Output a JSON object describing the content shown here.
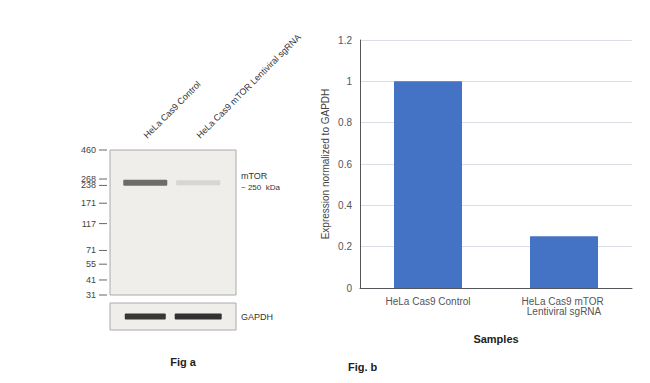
{
  "chart_data": [
    {
      "type": "blot",
      "title": "Fig a",
      "categories": [
        "HeLa Cas9 Control",
        "HeLa Cas9 mTOR Lentiviral sgRNA"
      ],
      "log": "y",
      "ylim": [
        31,
        460
      ],
      "yticks": [
        460,
        268,
        238,
        171,
        117,
        71,
        55,
        41,
        31
      ],
      "band_kda": 250,
      "annotations": [
        "mTOR",
        "~ 250  kDa",
        "GAPDH"
      ]
    },
    {
      "type": "bar",
      "title": "Fig. b",
      "categories": [
        "HeLa Cas9 Control",
        "HeLa Cas9 mTOR Lentiviral sgRNA"
      ],
      "values": [
        1.0,
        0.25
      ],
      "color": "#4472c4",
      "xlabel": "Samples",
      "ylabel": "Expression normalized to GAPDH",
      "ylim": [
        0,
        1.2
      ],
      "yticks": [
        0,
        0.2,
        0.4,
        0.6,
        0.8,
        1.0,
        1.2
      ],
      "grid": true
    }
  ]
}
